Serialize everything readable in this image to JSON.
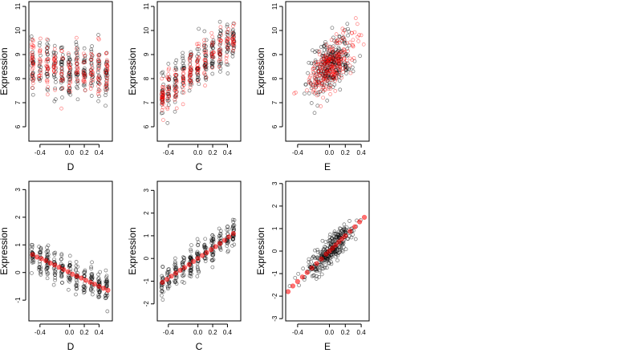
{
  "colors": {
    "observed": "#000000",
    "model": "#ff0000",
    "background": "#ffffff"
  },
  "chart_data": [
    {
      "type": "scatter",
      "xlabel": "D",
      "ylabel": "Expression",
      "xlim": [
        -0.55,
        0.58
      ],
      "ylim": [
        5.4,
        11.2
      ],
      "xticks": [
        -0.4,
        0.0,
        0.2,
        0.4
      ],
      "xtick_labels": [
        "-0.4",
        "0.0",
        "0.2",
        "0.4"
      ],
      "yticks": [
        6,
        7,
        8,
        9,
        10,
        11
      ],
      "ytick_labels": [
        "6",
        "7",
        "8",
        "9",
        "10",
        "11"
      ],
      "series": [
        {
          "color": "#000000",
          "n": 260,
          "x_range": [
            -0.52,
            0.52
          ],
          "trend": {
            "intercept": 8.4,
            "slope": -0.4
          },
          "spread": 1.05,
          "x_clusters": [
            -0.5,
            -0.4,
            -0.3,
            -0.2,
            -0.1,
            0.0,
            0.1,
            0.2,
            0.3,
            0.4,
            0.5
          ],
          "seed": 11
        },
        {
          "color": "#ff0000",
          "n": 200,
          "x_range": [
            -0.52,
            0.52
          ],
          "trend": {
            "intercept": 8.4,
            "slope": -0.5
          },
          "spread": 1.0,
          "x_clusters": [
            -0.5,
            -0.4,
            -0.3,
            -0.2,
            -0.1,
            0.0,
            0.1,
            0.2,
            0.3,
            0.4,
            0.5
          ],
          "seed": 12
        }
      ]
    },
    {
      "type": "scatter",
      "xlabel": "C",
      "ylabel": "Expression",
      "xlim": [
        -0.55,
        0.58
      ],
      "ylim": [
        5.4,
        11.2
      ],
      "xticks": [
        -0.4,
        0.0,
        0.2,
        0.4
      ],
      "xtick_labels": [
        "-0.4",
        "0.0",
        "0.2",
        "0.4"
      ],
      "yticks": [
        6,
        7,
        8,
        9,
        10,
        11
      ],
      "ytick_labels": [
        "6",
        "7",
        "8",
        "9",
        "10",
        "11"
      ],
      "series": [
        {
          "color": "#000000",
          "n": 260,
          "x_range": [
            -0.5,
            0.5
          ],
          "trend": {
            "intercept": 8.5,
            "slope": 2.2
          },
          "spread": 0.85,
          "x_clusters": [
            -0.48,
            -0.4,
            -0.3,
            -0.2,
            -0.1,
            0.0,
            0.1,
            0.2,
            0.3,
            0.4,
            0.48
          ],
          "seed": 21
        },
        {
          "color": "#ff0000",
          "n": 200,
          "x_range": [
            -0.5,
            0.5
          ],
          "trend": {
            "intercept": 8.5,
            "slope": 2.4
          },
          "spread": 0.7,
          "x_clusters": [
            -0.48,
            -0.4,
            -0.3,
            -0.2,
            -0.1,
            0.0,
            0.1,
            0.2,
            0.3,
            0.4,
            0.48
          ],
          "seed": 22
        }
      ]
    },
    {
      "type": "scatter",
      "xlabel": "E",
      "ylabel": "Expression",
      "xlim": [
        -0.55,
        0.5
      ],
      "ylim": [
        5.4,
        11.2
      ],
      "xticks": [
        -0.4,
        0.0,
        0.2,
        0.4
      ],
      "xtick_labels": [
        "-0.4",
        "0.0",
        "0.2",
        "0.4"
      ],
      "yticks": [
        6,
        7,
        8,
        9,
        10,
        11
      ],
      "ytick_labels": [
        "6",
        "7",
        "8",
        "9",
        "10",
        "11"
      ],
      "series": [
        {
          "color": "#000000",
          "n": 280,
          "x_range": [
            -0.45,
            0.42
          ],
          "trend": {
            "intercept": 8.5,
            "slope": 2.2
          },
          "spread": 0.95,
          "center_x": 0.0,
          "sd_x": 0.14,
          "seed": 31
        },
        {
          "color": "#ff0000",
          "n": 240,
          "x_range": [
            -0.5,
            0.45
          ],
          "trend": {
            "intercept": 8.5,
            "slope": 2.5
          },
          "spread": 0.9,
          "center_x": 0.0,
          "sd_x": 0.16,
          "seed": 32
        }
      ]
    },
    {
      "type": "scatter",
      "xlabel": "D",
      "ylabel": "Expression",
      "xlim": [
        -0.55,
        0.58
      ],
      "ylim": [
        -1.75,
        3.3
      ],
      "xticks": [
        -0.4,
        0.0,
        0.2,
        0.4
      ],
      "xtick_labels": [
        "-0.4",
        "0.0",
        "0.2",
        "0.4"
      ],
      "yticks": [
        -1,
        0,
        1,
        2,
        3
      ],
      "ytick_labels": [
        "-1",
        "0",
        "1",
        "2",
        "3"
      ],
      "series": [
        {
          "color": "#000000",
          "n": 280,
          "x_range": [
            -0.52,
            0.52
          ],
          "trend": {
            "intercept": 0.0,
            "slope": -1.2
          },
          "spread": 0.5,
          "x_clusters": [
            -0.5,
            -0.4,
            -0.3,
            -0.2,
            -0.1,
            0.0,
            0.1,
            0.2,
            0.3,
            0.4,
            0.5
          ],
          "seed": 41
        },
        {
          "color": "#ff0000",
          "fit": true,
          "x": [
            -0.5,
            -0.44,
            -0.38,
            -0.32,
            -0.26,
            -0.2,
            -0.14,
            -0.08,
            -0.02,
            0.04,
            0.1,
            0.16,
            0.22,
            0.28,
            0.34,
            0.4,
            0.46,
            0.52
          ],
          "y": [
            0.65,
            0.56,
            0.5,
            0.43,
            0.34,
            0.27,
            0.19,
            0.11,
            0.03,
            -0.06,
            -0.13,
            -0.2,
            -0.28,
            -0.35,
            -0.42,
            -0.5,
            -0.57,
            -0.64
          ]
        }
      ]
    },
    {
      "type": "scatter",
      "xlabel": "C",
      "ylabel": "Expression",
      "xlim": [
        -0.55,
        0.58
      ],
      "ylim": [
        -2.75,
        3.4
      ],
      "xticks": [
        -0.4,
        0.0,
        0.2,
        0.4
      ],
      "xtick_labels": [
        "-0.4",
        "0.0",
        "0.2",
        "0.4"
      ],
      "yticks": [
        -2,
        -1,
        0,
        1,
        2,
        3
      ],
      "ytick_labels": [
        "-2",
        "-1",
        "0",
        "1",
        "2",
        "3"
      ],
      "series": [
        {
          "color": "#000000",
          "n": 280,
          "x_range": [
            -0.5,
            0.5
          ],
          "trend": {
            "intercept": 0.0,
            "slope": 2.1
          },
          "spread": 0.6,
          "x_clusters": [
            -0.48,
            -0.4,
            -0.3,
            -0.2,
            -0.1,
            0.0,
            0.1,
            0.2,
            0.3,
            0.4,
            0.48
          ],
          "seed": 51
        },
        {
          "color": "#ff0000",
          "fit": true,
          "x": [
            -0.48,
            -0.42,
            -0.36,
            -0.3,
            -0.24,
            -0.18,
            -0.12,
            -0.06,
            0.0,
            0.06,
            0.12,
            0.18,
            0.24,
            0.3,
            0.36,
            0.42,
            0.48
          ],
          "y": [
            -1.05,
            -0.92,
            -0.78,
            -0.65,
            -0.52,
            -0.4,
            -0.27,
            -0.13,
            0.0,
            0.13,
            0.26,
            0.39,
            0.52,
            0.66,
            0.8,
            0.95,
            1.1
          ]
        }
      ]
    },
    {
      "type": "scatter",
      "xlabel": "E",
      "ylabel": "Expression",
      "xlim": [
        -0.55,
        0.5
      ],
      "ylim": [
        -3.1,
        3.1
      ],
      "xticks": [
        -0.4,
        0.0,
        0.2,
        0.4
      ],
      "xtick_labels": [
        "-0.4",
        "0.0",
        "0.2",
        "0.4"
      ],
      "yticks": [
        -3,
        -2,
        -1,
        0,
        1,
        2,
        3
      ],
      "ytick_labels": [
        "-3",
        "-2",
        "-1",
        "0",
        "1",
        "2",
        "3"
      ],
      "series": [
        {
          "color": "#000000",
          "n": 300,
          "x_range": [
            -0.5,
            0.45
          ],
          "trend": {
            "intercept": 0.0,
            "slope": 3.4
          },
          "spread": 0.55,
          "center_x": 0.0,
          "sd_x": 0.15,
          "seed": 61
        },
        {
          "color": "#ff0000",
          "fit": true,
          "x": [
            -0.52,
            -0.46,
            -0.4,
            -0.34,
            -0.28,
            -0.22,
            -0.16,
            -0.1,
            -0.04,
            0.0,
            0.04,
            0.08,
            0.12,
            0.16,
            0.2,
            0.26,
            0.32,
            0.38,
            0.44
          ],
          "y": [
            -1.8,
            -1.55,
            -1.35,
            -1.15,
            -0.95,
            -0.75,
            -0.55,
            -0.35,
            -0.13,
            0.0,
            0.13,
            0.27,
            0.41,
            0.55,
            0.68,
            0.88,
            1.08,
            1.3,
            1.5
          ]
        }
      ]
    }
  ]
}
